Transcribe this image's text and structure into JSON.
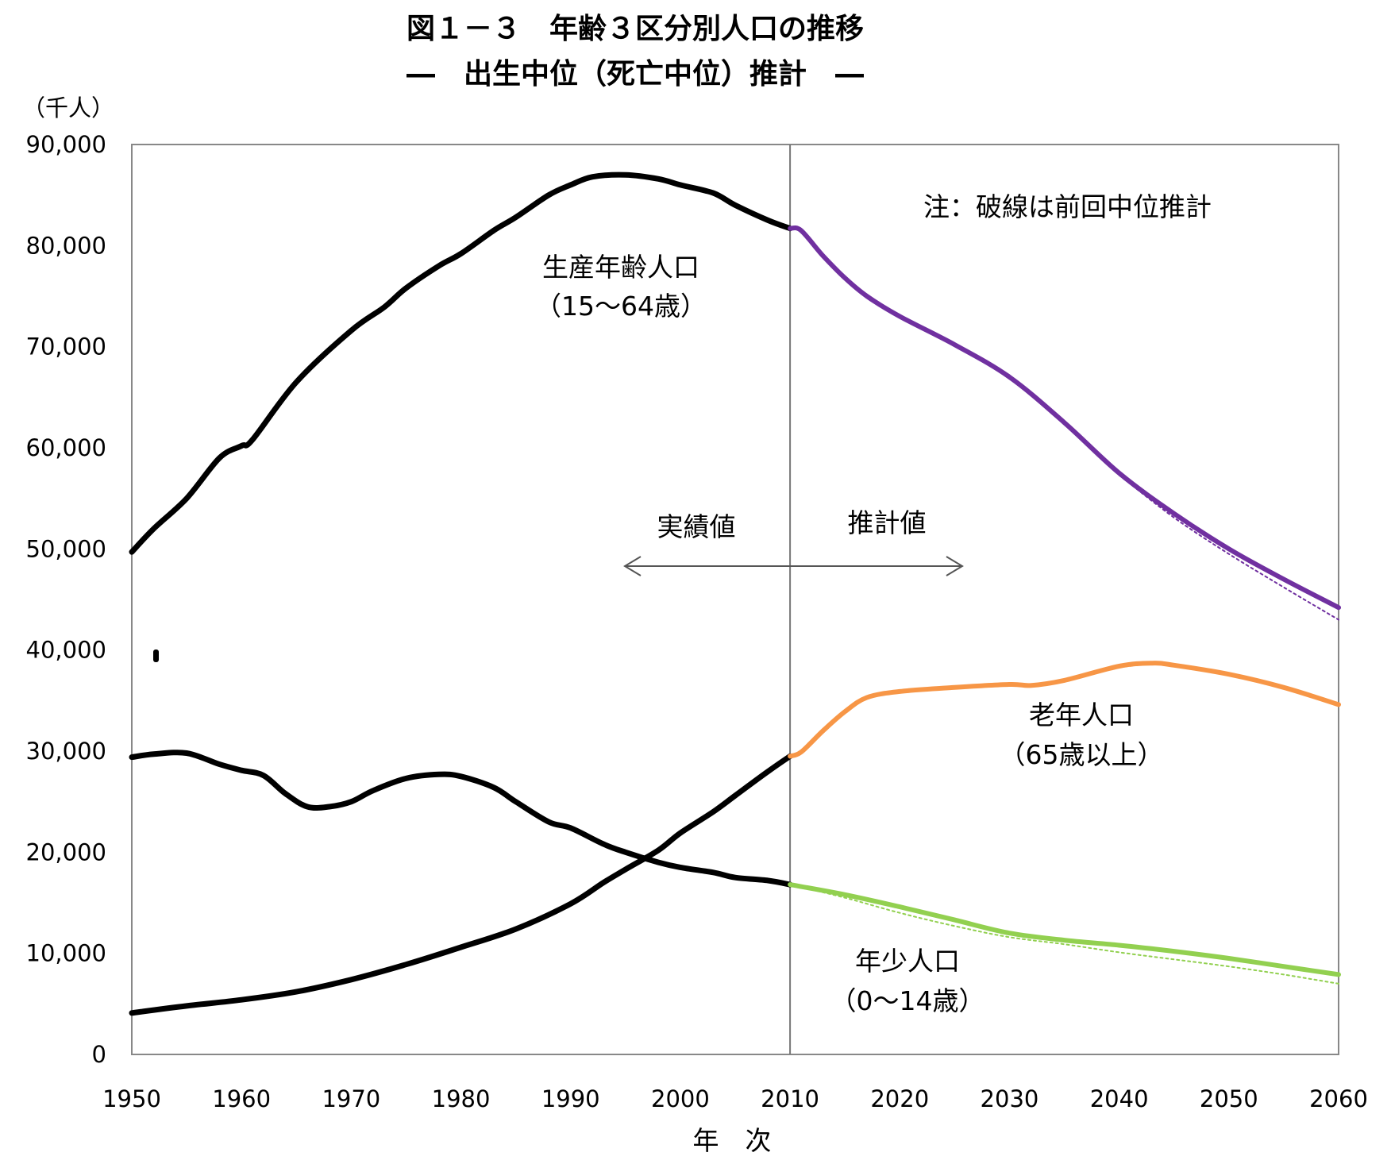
{
  "chart_data": {
    "type": "line",
    "title": "図１－３　年齢３区分別人口の推移",
    "subtitle": "―　出生中位（死亡中位）推計　―",
    "y_unit": "（千人）",
    "xlabel": "年　次",
    "ylabel": "",
    "ylim": [
      0,
      90000
    ],
    "xlim": [
      1950,
      2060
    ],
    "y_ticks": [
      "0",
      "10,000",
      "20,000",
      "30,000",
      "40,000",
      "50,000",
      "60,000",
      "70,000",
      "80,000",
      "90,000"
    ],
    "y_tick_values": [
      0,
      10000,
      20000,
      30000,
      40000,
      50000,
      60000,
      70000,
      80000,
      90000
    ],
    "x_ticks": [
      "1950",
      "1960",
      "1970",
      "1980",
      "1990",
      "2000",
      "2010",
      "2020",
      "2030",
      "2040",
      "2050",
      "2060"
    ],
    "x_tick_values": [
      1950,
      1960,
      1970,
      1980,
      1990,
      2000,
      2010,
      2020,
      2030,
      2040,
      2050,
      2060
    ],
    "divider_year": 2010,
    "grid": false,
    "annotations": {
      "note": "注：破線は前回中位推計",
      "actual": "実績値",
      "projected": "推計値"
    },
    "series": [
      {
        "name": "生産年齢人口",
        "sub": "（15～64歳）",
        "part": "actual",
        "color": "#000000",
        "x": [
          1950,
          1952,
          1955,
          1958,
          1960,
          1961,
          1965,
          1970,
          1973,
          1975,
          1978,
          1980,
          1983,
          1985,
          1988,
          1990,
          1992,
          1995,
          1998,
          2000,
          2003,
          2005,
          2008,
          2010
        ],
        "y": [
          49700,
          52000,
          55000,
          59000,
          60200,
          60800,
          66500,
          71600,
          73900,
          75800,
          78000,
          79200,
          81500,
          82800,
          85000,
          86000,
          86800,
          87000,
          86600,
          86000,
          85200,
          84000,
          82500,
          81700
        ]
      },
      {
        "name": "年少人口",
        "sub": "（0～14歳）",
        "part": "actual",
        "color": "#000000",
        "x": [
          1950,
          1952,
          1955,
          1958,
          1960,
          1962,
          1964,
          1966,
          1968,
          1970,
          1972,
          1975,
          1978,
          1980,
          1983,
          1985,
          1988,
          1990,
          1993,
          1995,
          1998,
          2000,
          2003,
          2005,
          2008,
          2010
        ],
        "y": [
          29400,
          29700,
          29800,
          28700,
          28100,
          27600,
          25800,
          24500,
          24500,
          25000,
          26100,
          27300,
          27700,
          27500,
          26400,
          25000,
          23000,
          22400,
          20800,
          20000,
          19000,
          18500,
          18000,
          17500,
          17200,
          16800
        ]
      },
      {
        "name": "老年人口",
        "sub": "（65歳以上）",
        "part": "actual",
        "color": "#000000",
        "x": [
          1950,
          1955,
          1960,
          1965,
          1970,
          1975,
          1980,
          1985,
          1990,
          1993,
          1995,
          1998,
          2000,
          2003,
          2005,
          2008,
          2010
        ],
        "y": [
          4100,
          4800,
          5400,
          6200,
          7400,
          8900,
          10600,
          12400,
          14900,
          17000,
          18300,
          20200,
          21900,
          24000,
          25600,
          28000,
          29500
        ]
      },
      {
        "name": "生産年齢人口",
        "part": "projection",
        "color": "#7030a0",
        "x": [
          2010,
          2011,
          2013,
          2015,
          2017,
          2020,
          2025,
          2030,
          2035,
          2040,
          2045,
          2050,
          2055,
          2060
        ],
        "y": [
          81700,
          81500,
          79000,
          76800,
          75000,
          73000,
          70200,
          67000,
          62500,
          57500,
          53500,
          50000,
          47000,
          44200
        ]
      },
      {
        "name": "老年人口",
        "part": "projection",
        "color": "#f79646",
        "x": [
          2010,
          2011,
          2013,
          2015,
          2017,
          2020,
          2025,
          2030,
          2032,
          2035,
          2040,
          2043,
          2045,
          2050,
          2055,
          2060
        ],
        "y": [
          29500,
          29900,
          32000,
          33900,
          35300,
          35900,
          36300,
          36600,
          36500,
          37000,
          38400,
          38700,
          38500,
          37600,
          36300,
          34600
        ]
      },
      {
        "name": "年少人口",
        "part": "projection",
        "color": "#92d050",
        "x": [
          2010,
          2015,
          2020,
          2025,
          2030,
          2035,
          2040,
          2045,
          2050,
          2055,
          2060
        ],
        "y": [
          16800,
          15800,
          14600,
          13300,
          12000,
          11300,
          10800,
          10200,
          9500,
          8700,
          7900
        ]
      },
      {
        "name": "前回中位推計 生産年齢人口",
        "part": "previous",
        "color": "#7030a0",
        "x": [
          2040,
          2045,
          2050,
          2055,
          2060
        ],
        "y": [
          57300,
          53100,
          49500,
          46200,
          43000
        ]
      },
      {
        "name": "前回中位推計 年少人口",
        "part": "previous",
        "color": "#92d050",
        "x": [
          2010,
          2015,
          2020,
          2025,
          2030,
          2035,
          2040,
          2045,
          2050,
          2055,
          2060
        ],
        "y": [
          16800,
          15500,
          14000,
          12700,
          11600,
          10900,
          10100,
          9400,
          8700,
          7900,
          7000
        ]
      },
      {
        "name": "前回中位推計 老年人口",
        "part": "previous",
        "color": "#f79646",
        "x": [
          2040,
          2043,
          2045,
          2050,
          2055,
          2060
        ],
        "y": [
          38300,
          38600,
          38400,
          37500,
          36200,
          34500
        ]
      }
    ]
  }
}
